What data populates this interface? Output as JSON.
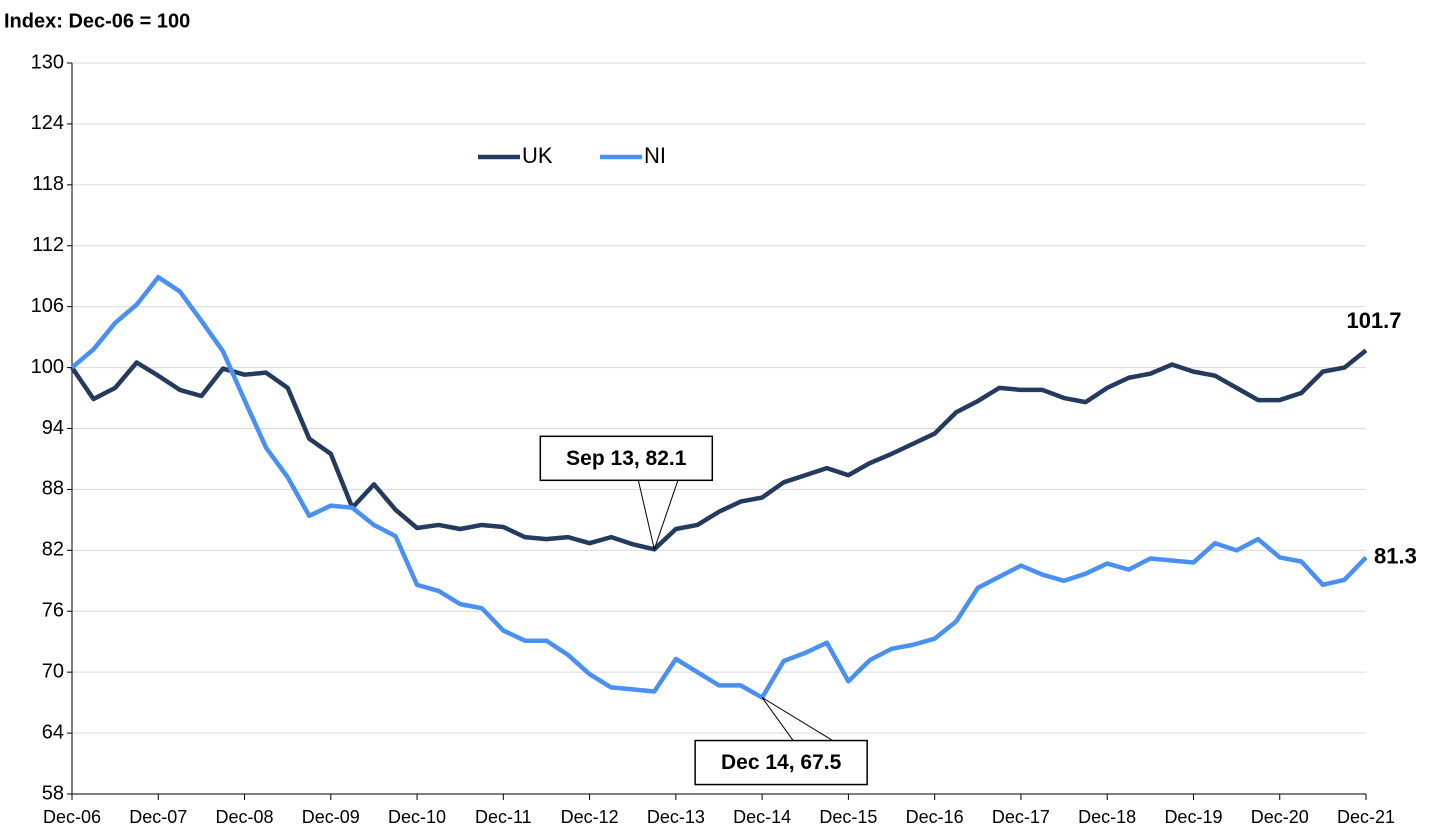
{
  "chart_data": {
    "type": "line",
    "y_label": "Index: Dec-06 = 100",
    "categories": [
      "Dec-06",
      null,
      null,
      null,
      "Dec-07",
      null,
      null,
      null,
      "Dec-08",
      null,
      null,
      null,
      "Dec-09",
      null,
      null,
      null,
      "Dec-10",
      null,
      null,
      null,
      "Dec-11",
      null,
      null,
      null,
      "Dec-12",
      null,
      null,
      null,
      "Dec-13",
      null,
      null,
      null,
      "Dec-14",
      null,
      null,
      null,
      "Dec-15",
      null,
      null,
      null,
      "Dec-16",
      null,
      null,
      null,
      "Dec-17",
      null,
      null,
      null,
      "Dec-18",
      null,
      null,
      null,
      "Dec-19",
      null,
      null,
      null,
      "Dec-20",
      null,
      null,
      null,
      "Dec-21"
    ],
    "series": [
      {
        "name": "UK",
        "color": "#243a5e",
        "values": [
          100,
          96.9,
          98.0,
          100.5,
          99.2,
          97.8,
          97.2,
          99.9,
          99.3,
          99.5,
          98.0,
          93.0,
          91.5,
          86.2,
          88.5,
          86.0,
          84.2,
          84.5,
          84.1,
          84.5,
          84.3,
          83.3,
          83.1,
          83.3,
          82.7,
          83.3,
          82.6,
          82.1,
          84.1,
          84.5,
          85.8,
          86.8,
          87.2,
          88.7,
          89.4,
          90.1,
          89.4,
          90.6,
          91.5,
          92.5,
          93.5,
          95.6,
          96.7,
          98.0,
          97.8,
          97.8,
          97.0,
          96.6,
          98.0,
          99.0,
          99.4,
          100.3,
          99.6,
          99.2,
          98.0,
          96.8,
          96.8,
          97.5,
          99.6,
          100.0,
          101.7
        ]
      },
      {
        "name": "NI",
        "color": "#4a8ff2",
        "values": [
          100,
          101.8,
          104.4,
          106.2,
          108.9,
          107.5,
          104.6,
          101.6,
          96.8,
          92.1,
          89.2,
          85.4,
          86.4,
          86.2,
          84.5,
          83.4,
          78.6,
          78.0,
          76.7,
          76.3,
          74.1,
          73.1,
          73.1,
          71.7,
          69.8,
          68.5,
          68.3,
          68.1,
          71.3,
          70.0,
          68.7,
          68.7,
          67.5,
          71.1,
          71.9,
          72.9,
          69.1,
          71.2,
          72.3,
          72.7,
          73.3,
          75.0,
          78.3,
          79.4,
          80.5,
          79.6,
          79.0,
          79.7,
          80.7,
          80.1,
          81.2,
          81.0,
          80.8,
          82.7,
          82.0,
          83.1,
          81.3,
          80.9,
          78.6,
          79.1,
          81.3
        ]
      }
    ],
    "annotations": [
      "Sep 13, 82.1",
      "Dec 14, 67.5"
    ],
    "ylim": [
      58,
      130
    ],
    "yticks": [
      58,
      64,
      70,
      76,
      82,
      88,
      94,
      100,
      106,
      112,
      118,
      124,
      130
    ],
    "grid": true
  }
}
